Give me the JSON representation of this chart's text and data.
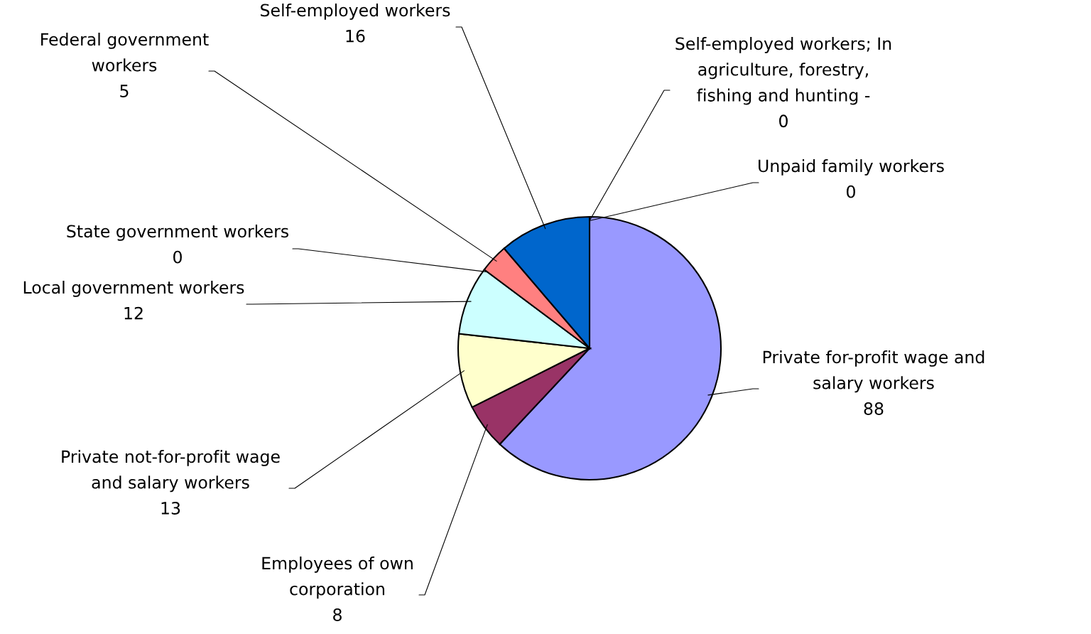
{
  "chart_data": {
    "type": "pie",
    "categories": [
      "Private for-profit wage and\nsalary workers",
      "Employees of own\ncorporation",
      "Private not-for-profit wage\nand salary workers",
      "Local government workers",
      "State government workers",
      "Federal government\nworkers",
      "Self-employed workers",
      "Self-employed workers; In\nagriculture, forestry,\nfishing and hunting -",
      "Unpaid family workers"
    ],
    "values": [
      88,
      8,
      13,
      12,
      0,
      5,
      16,
      0,
      0
    ],
    "colors": [
      "#9999ff",
      "#993366",
      "#ffffcc",
      "#ccffff",
      "#660066",
      "#ff8080",
      "#0066cc",
      "#ccccff",
      "#000080"
    ],
    "data_labels": true,
    "value_labels": [
      "88",
      "8",
      "13",
      "12",
      "0",
      "5",
      "16",
      "0",
      "0"
    ]
  }
}
